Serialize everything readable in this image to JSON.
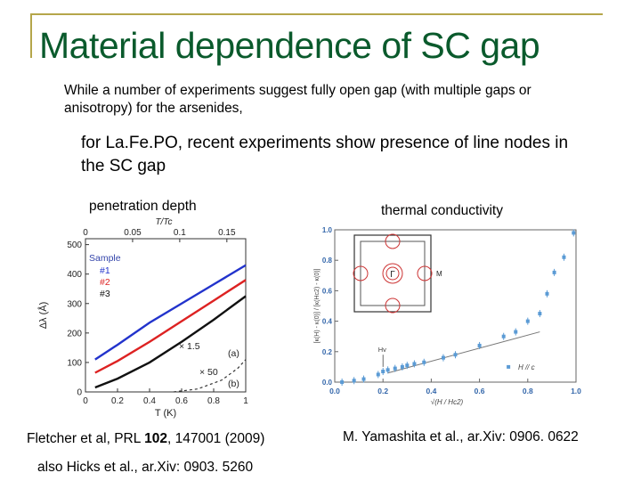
{
  "slide": {
    "title": "Material dependence of SC gap",
    "intro": "While a number of experiments suggest fully open gap (with multiple gaps or anisotropy) for the arsenides,",
    "subhead": "for La.Fe.PO, recent experiments show presence of line nodes in the SC gap",
    "left_label": "penetration depth",
    "right_label": "thermal conductivity",
    "citation_left": "Fletcher et al, PRL 102, 147001 (2009)",
    "citation_left_parts": {
      "pre": "Fletcher et al, PRL ",
      "volume": "102",
      "post": ", 147001 (2009)"
    },
    "citation_left_2": "also Hicks et al., ar.Xiv: 0903. 5260",
    "citation_right": "M. Yamashita et al., ar.Xiv: 0906. 0622",
    "accent_color": "#0a5a2c"
  },
  "chart_data": [
    {
      "type": "line",
      "xlabel": "T (K)",
      "ylabel": "Δλ (Å)",
      "top_axis_label": "T/Tc",
      "x_ticks": [
        "0",
        "0.2",
        "0.4",
        "0.6",
        "0.8",
        "1"
      ],
      "y_ticks": [
        "0",
        "100",
        "200",
        "300",
        "400",
        "500"
      ],
      "top_ticks": [
        "0",
        "0.05",
        "0.1",
        "0.15"
      ],
      "xlim": [
        0,
        1
      ],
      "ylim": [
        0,
        520
      ],
      "legend_title": "Sample",
      "legend": [
        "#1",
        "#2",
        "#3"
      ],
      "annotations": [
        "× 1.5",
        "× 50",
        "(a)",
        "(b)"
      ],
      "series": [
        {
          "name": "#1",
          "color": "#2233cc",
          "x": [
            0.06,
            0.2,
            0.4,
            0.6,
            0.8,
            1.0
          ],
          "y": [
            110,
            160,
            235,
            300,
            365,
            430
          ]
        },
        {
          "name": "#2",
          "color": "#dd2222",
          "x": [
            0.06,
            0.2,
            0.4,
            0.6,
            0.8,
            1.0
          ],
          "y": [
            65,
            105,
            170,
            240,
            310,
            380
          ]
        },
        {
          "name": "#3",
          "color": "#111111",
          "x": [
            0.06,
            0.2,
            0.4,
            0.6,
            0.8,
            1.0
          ],
          "y": [
            15,
            45,
            100,
            170,
            245,
            325
          ]
        }
      ],
      "dashed_series": {
        "x": [
          0.55,
          0.7,
          0.85,
          0.95,
          1.0
        ],
        "y": [
          0,
          10,
          40,
          80,
          110
        ]
      }
    },
    {
      "type": "scatter",
      "ylabel": "[κ(H) - κ(0)] / [κ(Hc2) - κ(0)]",
      "xlabel": "√(H / Hc2)",
      "x_ticks": [
        "0.0",
        "0.2",
        "0.4",
        "0.6",
        "0.8",
        "1.0"
      ],
      "y_ticks": [
        "0.0",
        "0.2",
        "0.4",
        "0.6",
        "0.8",
        "1.0"
      ],
      "xlim": [
        0,
        1
      ],
      "ylim": [
        0,
        1
      ],
      "legend": [
        "H // c"
      ],
      "inset_labels": [
        "Γ",
        "M"
      ],
      "annotations": [
        "Hv"
      ],
      "points": {
        "x": [
          0.03,
          0.08,
          0.12,
          0.18,
          0.2,
          0.22,
          0.25,
          0.28,
          0.3,
          0.33,
          0.37,
          0.45,
          0.5,
          0.6,
          0.7,
          0.75,
          0.8,
          0.85,
          0.88,
          0.91,
          0.95,
          0.99
        ],
        "y": [
          0.0,
          0.01,
          0.02,
          0.05,
          0.07,
          0.08,
          0.09,
          0.1,
          0.11,
          0.12,
          0.13,
          0.16,
          0.18,
          0.24,
          0.3,
          0.33,
          0.4,
          0.45,
          0.58,
          0.72,
          0.82,
          0.98
        ]
      },
      "fit_line": {
        "x": [
          0.22,
          0.85
        ],
        "y": [
          0.06,
          0.33
        ]
      }
    }
  ]
}
